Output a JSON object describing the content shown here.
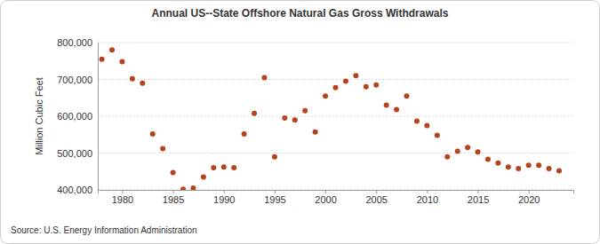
{
  "chart_data": {
    "type": "scatter",
    "title": "Annual US--State Offshore Natural Gas Gross Withdrawals",
    "y_label": "Million Cubic Feet",
    "source": "Source: U.S. Energy Information Administration",
    "x": [
      1978,
      1979,
      1980,
      1981,
      1982,
      1983,
      1984,
      1985,
      1986,
      1987,
      1988,
      1989,
      1990,
      1991,
      1992,
      1993,
      1994,
      1995,
      1996,
      1997,
      1998,
      1999,
      2000,
      2001,
      2002,
      2003,
      2004,
      2005,
      2006,
      2007,
      2008,
      2009,
      2010,
      2011,
      2012,
      2013,
      2014,
      2015,
      2016,
      2017,
      2018,
      2019,
      2020,
      2021,
      2022,
      2023
    ],
    "values": [
      755000,
      780000,
      748000,
      702000,
      690000,
      552000,
      512000,
      447000,
      402000,
      405000,
      435000,
      460000,
      462000,
      460000,
      552000,
      608000,
      705000,
      490000,
      595000,
      590000,
      615000,
      557000,
      655000,
      678000,
      695000,
      710000,
      680000,
      685000,
      630000,
      618000,
      655000,
      587000,
      575000,
      548000,
      490000,
      505000,
      515000,
      503000,
      483000,
      473000,
      462000,
      458000,
      467000,
      467000,
      458000,
      452000
    ],
    "color": "#b5441c",
    "marker": "circle",
    "xlim": [
      1977.6,
      2024.4
    ],
    "xticks": [
      1980,
      1985,
      1990,
      1995,
      2000,
      2005,
      2010,
      2015,
      2020
    ],
    "ylim": [
      400000,
      800000
    ],
    "yticks": [
      {
        "value": 400000,
        "label": "400,000"
      },
      {
        "value": 500000,
        "label": "500,000"
      },
      {
        "value": 600000,
        "label": "600,000"
      },
      {
        "value": 700000,
        "label": "700,000"
      },
      {
        "value": 800000,
        "label": "800,000"
      }
    ],
    "grid": true
  }
}
